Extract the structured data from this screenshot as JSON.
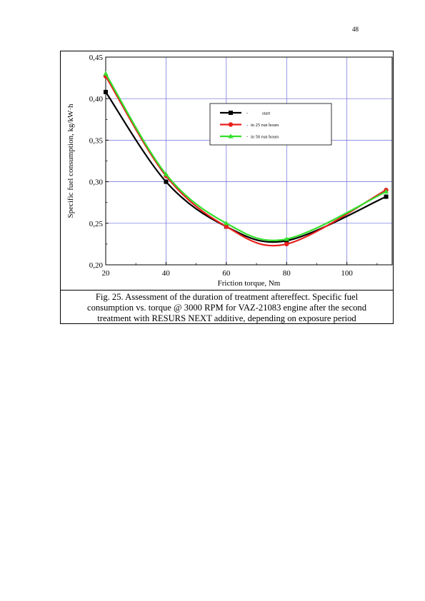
{
  "page": {
    "number": "48"
  },
  "caption": {
    "lines": [
      "Fig. 25. Assessment of the duration of treatment aftereffect. Specific fuel",
      "consumption vs. torque @ 3000 RPM for VAZ-21083 engine after the second",
      "treatment with RESURS NEXT additive, depending on exposure period"
    ]
  },
  "chart_data": {
    "type": "line",
    "title": "",
    "xlabel": "Friction torque, Nm",
    "ylabel": "Specific fuel consumption, kg/kW·h",
    "xlim": [
      20,
      115
    ],
    "ylim": [
      0.2,
      0.45
    ],
    "x_ticks": [
      20,
      40,
      60,
      80,
      100
    ],
    "x_tick_labels": [
      "20",
      "40",
      "60",
      "80",
      "100"
    ],
    "y_ticks": [
      0.2,
      0.25,
      0.3,
      0.35,
      0.4,
      0.45
    ],
    "y_tick_labels": [
      "0,20",
      "0,25",
      "0,30",
      "0,35",
      "0,40",
      "0,45"
    ],
    "grid": true,
    "legend_position": "top-right",
    "x": [
      20,
      40,
      60,
      80,
      113
    ],
    "series": [
      {
        "name": "start",
        "values": [
          0.408,
          0.3,
          0.246,
          0.229,
          0.282
        ],
        "color": "#000000",
        "marker": "square"
      },
      {
        "name": "in 25 run hours",
        "values": [
          0.427,
          0.307,
          0.246,
          0.225,
          0.29
        ],
        "color": "#e8201c",
        "marker": "circle"
      },
      {
        "name": "in 50 run hours",
        "values": [
          0.43,
          0.309,
          0.25,
          0.231,
          0.288
        ],
        "color": "#33e02c",
        "marker": "triangle"
      }
    ],
    "legend_prefix": "-"
  }
}
